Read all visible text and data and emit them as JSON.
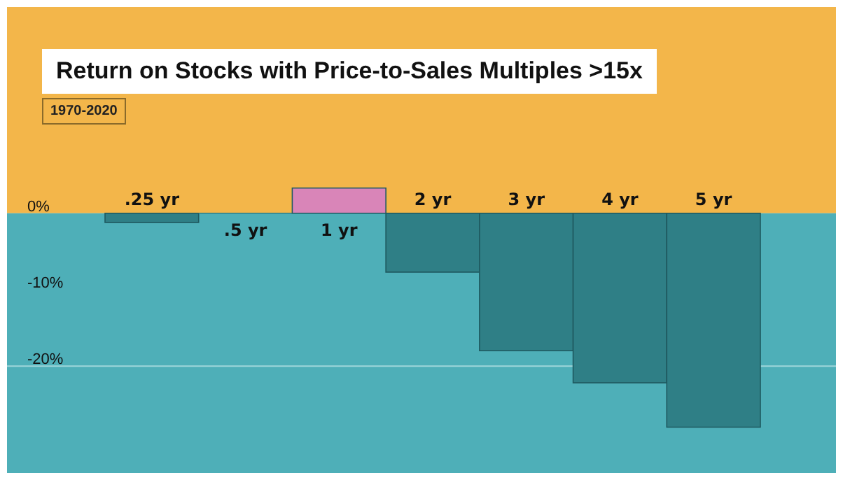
{
  "chart_data": {
    "type": "bar",
    "title": "Return on Stocks with Price-to-Sales Multiples >15x",
    "subtitle": "1970-2020",
    "categories": [
      ".25 yr",
      ".5 yr",
      "1 yr",
      "2 yr",
      "3 yr",
      "4 yr",
      "5 yr"
    ],
    "values": [
      -1.2,
      0,
      3.3,
      -7.7,
      -18,
      -22.2,
      -28
    ],
    "colors": [
      "#2f7f86",
      "#2f7f86",
      "#d985b8",
      "#2f7f86",
      "#2f7f86",
      "#2f7f86",
      "#2f7f86"
    ],
    "ylim": [
      -34,
      27
    ],
    "yticks": [
      {
        "value": 0,
        "label": "0%"
      },
      {
        "value": -10,
        "label": "-10%"
      },
      {
        "value": -20,
        "label": "-20%"
      }
    ],
    "bands": [
      {
        "axis": "y",
        "from": 0,
        "to": 27,
        "color": "#f3b64a"
      },
      {
        "axis": "y",
        "from": -34,
        "to": 0,
        "color": "#4eafb8"
      }
    ],
    "ref_lines": [
      {
        "axis": "y",
        "value": -20,
        "color": "#9fd6da"
      }
    ]
  }
}
